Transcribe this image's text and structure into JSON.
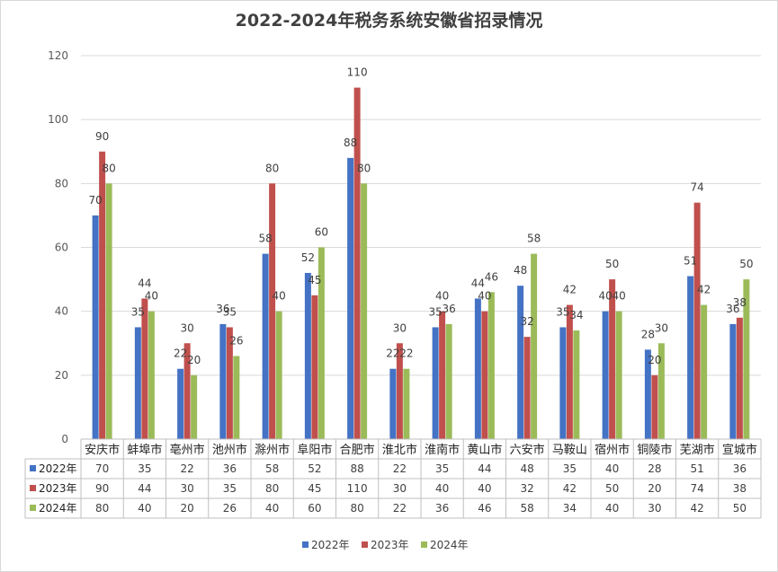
{
  "chart_data": {
    "type": "bar",
    "title": "2022-2024年税务系统安徽省招录情况",
    "categories": [
      "安庆市",
      "蚌埠市",
      "亳州市",
      "池州市",
      "滁州市",
      "阜阳市",
      "合肥市",
      "淮北市",
      "淮南市",
      "黄山市",
      "六安市",
      "马鞍山",
      "宿州市",
      "铜陵市",
      "芜湖市",
      "宣城市"
    ],
    "series": [
      {
        "name": "2022年",
        "color": "#4472c4",
        "values": [
          70,
          35,
          22,
          36,
          58,
          52,
          88,
          22,
          35,
          44,
          48,
          35,
          40,
          28,
          51,
          36
        ]
      },
      {
        "name": "2023年",
        "color": "#c0504d",
        "values": [
          90,
          44,
          30,
          35,
          80,
          45,
          110,
          30,
          40,
          40,
          32,
          42,
          50,
          20,
          74,
          38
        ]
      },
      {
        "name": "2024年",
        "color": "#9bbb59",
        "values": [
          80,
          40,
          20,
          26,
          40,
          60,
          80,
          22,
          36,
          46,
          58,
          34,
          40,
          30,
          42,
          50
        ]
      }
    ],
    "y_ticks": [
      0,
      20,
      40,
      60,
      80,
      100,
      120
    ],
    "ylim": [
      0,
      120
    ],
    "grid": true,
    "legend": "bottom",
    "data_table": true
  }
}
